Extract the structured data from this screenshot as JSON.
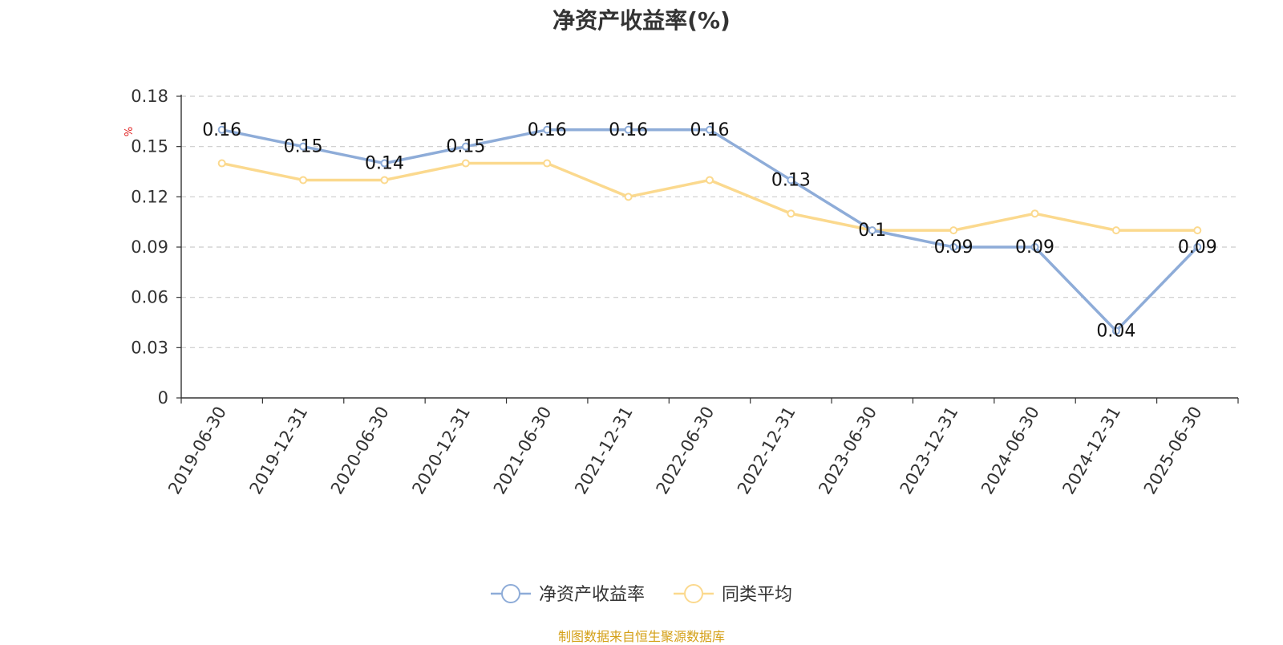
{
  "chart_data": {
    "type": "line",
    "title": "净资产收益率(%)",
    "ylabel": "%",
    "xlabel": "",
    "categories": [
      "2019-06-30",
      "2019-12-31",
      "2020-06-30",
      "2020-12-31",
      "2021-06-30",
      "2021-12-31",
      "2022-06-30",
      "2022-12-31",
      "2023-06-30",
      "2023-12-31",
      "2024-06-30",
      "2024-12-31",
      "2025-06-30"
    ],
    "ylim": [
      0,
      0.18
    ],
    "yticks": [
      "0",
      "0.03",
      "0.06",
      "0.09",
      "0.12",
      "0.15",
      "0.18"
    ],
    "grid": true,
    "legend_position": "bottom",
    "series": [
      {
        "name": "净资产收益率",
        "color": "#8eacd8",
        "values": [
          0.16,
          0.15,
          0.14,
          0.15,
          0.16,
          0.16,
          0.16,
          0.13,
          0.1,
          0.09,
          0.09,
          0.04,
          0.09
        ],
        "labels": [
          "0.16",
          "0.15",
          "0.14",
          "0.15",
          "0.16",
          "0.16",
          "0.16",
          "0.13",
          "0.1",
          "0.09",
          "0.09",
          "0.04",
          "0.09"
        ]
      },
      {
        "name": "同类平均",
        "color": "#fbd98e",
        "values": [
          0.14,
          0.13,
          0.13,
          0.14,
          0.14,
          0.12,
          0.13,
          0.11,
          0.1,
          0.1,
          0.11,
          0.1,
          0.1
        ]
      }
    ]
  },
  "source_text": "制图数据来自恒生聚源数据库"
}
